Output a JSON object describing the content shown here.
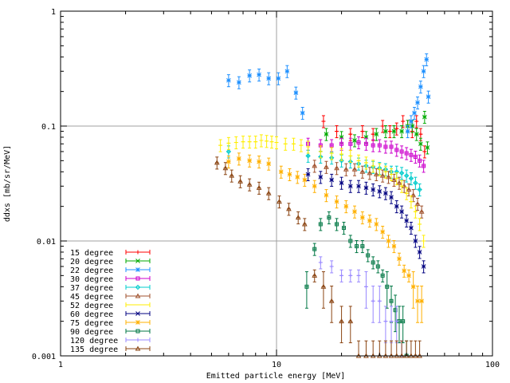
{
  "chart_data": {
    "type": "scatter",
    "title": "",
    "xlabel": "Emitted particle energy [MeV]",
    "ylabel": "ddxs [mb/sr/MeV]",
    "x_scale": "log",
    "y_scale": "log",
    "xlim": [
      1,
      100
    ],
    "ylim": [
      0.001,
      1
    ],
    "grid": true,
    "legend_position": "bottom-left",
    "x_ticks": [
      {
        "value": 1,
        "label": "1"
      },
      {
        "value": 10,
        "label": "10"
      },
      {
        "value": 100,
        "label": "100"
      }
    ],
    "y_ticks": [
      {
        "value": 0.001,
        "label": "0.001"
      },
      {
        "value": 0.01,
        "label": "0.01"
      },
      {
        "value": 0.1,
        "label": "0.1"
      },
      {
        "value": 1,
        "label": "1"
      }
    ],
    "series": [
      {
        "name": "15 degree",
        "color": "#ff0000",
        "marker": "plus",
        "x": [
          16.5,
          19,
          22,
          25,
          28,
          31,
          33.5,
          36,
          38.5,
          40.5,
          42.5,
          44.5,
          46.5,
          48.5
        ],
        "y": [
          0.11,
          0.09,
          0.085,
          0.09,
          0.085,
          0.1,
          0.09,
          0.095,
          0.11,
          0.1,
          0.09,
          0.11,
          0.085,
          0.06
        ]
      },
      {
        "name": "20 degree",
        "color": "#00aa00",
        "marker": "x",
        "x": [
          17,
          20,
          23,
          26,
          29,
          32,
          35,
          38,
          40.5,
          42.5,
          44.5,
          46.5,
          48.5,
          50
        ],
        "y": [
          0.085,
          0.08,
          0.075,
          0.08,
          0.085,
          0.09,
          0.09,
          0.09,
          0.1,
          0.1,
          0.085,
          0.07,
          0.12,
          0.065
        ]
      },
      {
        "name": "22 degree",
        "color": "#1e90ff",
        "marker": "star",
        "x": [
          6,
          6.7,
          7.5,
          8.3,
          9.2,
          10.2,
          11.2,
          12.3,
          13.2,
          40.5,
          42,
          43.5,
          45,
          46.5,
          48,
          49.5,
          50.5
        ],
        "y": [
          0.25,
          0.24,
          0.275,
          0.28,
          0.26,
          0.26,
          0.3,
          0.195,
          0.13,
          0.09,
          0.11,
          0.13,
          0.16,
          0.22,
          0.3,
          0.38,
          0.18
        ]
      },
      {
        "name": "30 degree",
        "color": "#cc00cc",
        "marker": "square",
        "x": [
          14,
          16,
          18,
          20,
          22,
          24,
          26,
          28,
          30,
          32,
          34,
          36,
          38,
          40,
          42,
          44,
          46,
          48
        ],
        "y": [
          0.07,
          0.068,
          0.068,
          0.07,
          0.07,
          0.072,
          0.07,
          0.068,
          0.068,
          0.066,
          0.066,
          0.062,
          0.06,
          0.058,
          0.056,
          0.054,
          0.05,
          0.045
        ]
      },
      {
        "name": "37 degree",
        "color": "#00cccc",
        "marker": "diamond",
        "x": [
          6,
          14,
          16,
          18,
          20,
          22,
          24,
          26,
          28,
          30,
          32,
          34,
          36,
          38,
          40,
          42,
          44,
          46
        ],
        "y": [
          0.06,
          0.055,
          0.054,
          0.053,
          0.05,
          0.049,
          0.047,
          0.045,
          0.044,
          0.043,
          0.042,
          0.04,
          0.04,
          0.039,
          0.037,
          0.035,
          0.032,
          0.028
        ]
      },
      {
        "name": "45 degree",
        "color": "#a0522d",
        "marker": "triangle",
        "x": [
          15,
          17,
          19,
          21,
          23,
          25,
          27,
          29,
          31,
          33,
          35,
          37,
          39,
          41,
          43,
          45,
          47
        ],
        "y": [
          0.045,
          0.044,
          0.043,
          0.042,
          0.042,
          0.04,
          0.039,
          0.038,
          0.037,
          0.036,
          0.034,
          0.032,
          0.03,
          0.028,
          0.025,
          0.021,
          0.018
        ]
      },
      {
        "name": "52 degree",
        "color": "#ffee00",
        "marker": "line",
        "x": [
          5.5,
          6,
          6.5,
          7,
          7.5,
          8,
          8.5,
          9,
          9.5,
          10,
          11,
          12,
          13,
          14,
          16,
          18,
          20,
          22,
          24,
          26,
          28,
          30,
          32,
          34,
          36,
          38,
          40,
          42,
          44,
          46,
          48
        ],
        "y": [
          0.068,
          0.071,
          0.072,
          0.073,
          0.073,
          0.073,
          0.075,
          0.074,
          0.073,
          0.072,
          0.07,
          0.07,
          0.068,
          0.066,
          0.06,
          0.058,
          0.057,
          0.055,
          0.05,
          0.048,
          0.045,
          0.042,
          0.04,
          0.038,
          0.035,
          0.03,
          0.026,
          0.022,
          0.018,
          0.014,
          0.01
        ]
      },
      {
        "name": "60 degree",
        "color": "#000080",
        "marker": "x",
        "x": [
          14,
          16,
          18,
          20,
          22,
          24,
          26,
          28,
          30,
          32,
          34,
          36,
          38,
          40,
          42,
          44,
          46,
          48
        ],
        "y": [
          0.038,
          0.036,
          0.034,
          0.032,
          0.03,
          0.03,
          0.029,
          0.028,
          0.027,
          0.026,
          0.024,
          0.02,
          0.018,
          0.015,
          0.013,
          0.01,
          0.008,
          0.006
        ]
      },
      {
        "name": "75 degree",
        "color": "#ffb000",
        "marker": "star",
        "x": [
          6,
          6.7,
          7.5,
          8.3,
          9.2,
          10.5,
          11.5,
          12.5,
          13.5,
          15,
          17,
          19,
          21,
          23,
          25,
          27,
          29,
          31,
          33,
          35,
          37,
          39,
          41,
          43,
          45,
          47
        ],
        "y": [
          0.049,
          0.052,
          0.05,
          0.049,
          0.047,
          0.04,
          0.038,
          0.036,
          0.034,
          0.03,
          0.025,
          0.022,
          0.02,
          0.018,
          0.016,
          0.015,
          0.014,
          0.012,
          0.01,
          0.009,
          0.007,
          0.0055,
          0.005,
          0.004,
          0.003,
          0.003
        ]
      },
      {
        "name": "90 degree",
        "color": "#007744",
        "marker": "square",
        "x": [
          13.8,
          15,
          16,
          17.5,
          19,
          20.5,
          22,
          23.5,
          25,
          26.5,
          28,
          29.5,
          31,
          32.5,
          34,
          35.5,
          37,
          38.5,
          40
        ],
        "y": [
          0.004,
          0.0085,
          0.014,
          0.016,
          0.014,
          0.013,
          0.01,
          0.009,
          0.009,
          0.0075,
          0.0065,
          0.006,
          0.005,
          0.004,
          0.003,
          0.0025,
          0.002,
          0.002,
          0.001
        ]
      },
      {
        "name": "120 degree",
        "color": "#9988ff",
        "marker": "plus",
        "x": [
          16,
          18,
          20,
          22,
          24,
          26,
          28,
          30,
          32,
          34,
          36,
          38
        ],
        "y": [
          0.0065,
          0.006,
          0.005,
          0.005,
          0.005,
          0.004,
          0.003,
          0.003,
          0.002,
          0.002,
          0.002,
          0.001
        ]
      },
      {
        "name": "135 degree",
        "color": "#8b4513",
        "marker": "triangle",
        "x": [
          5.3,
          5.8,
          6.2,
          6.8,
          7.5,
          8.3,
          9.2,
          10.3,
          11.4,
          12.6,
          13.5,
          15,
          16.5,
          18,
          20,
          22,
          24,
          26,
          28,
          30,
          32,
          34,
          36,
          38,
          40,
          42,
          44,
          46
        ],
        "y": [
          0.048,
          0.043,
          0.037,
          0.033,
          0.031,
          0.029,
          0.026,
          0.022,
          0.019,
          0.016,
          0.014,
          0.005,
          0.004,
          0.003,
          0.002,
          0.002,
          0.001,
          0.001,
          0.001,
          0.001,
          0.001,
          0.001,
          0.001,
          0.001,
          0.001,
          0.001,
          0.001,
          0.001
        ]
      }
    ]
  }
}
